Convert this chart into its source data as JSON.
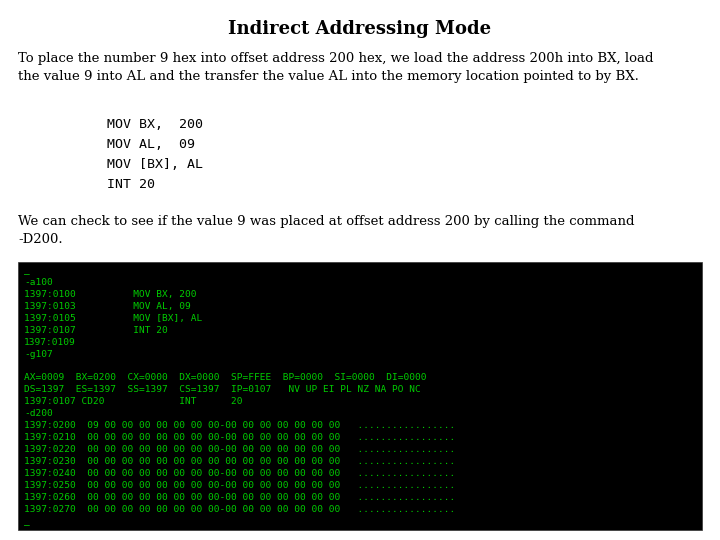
{
  "title": "Indirect Addressing Mode",
  "title_fontsize": 13,
  "body_text_1": "To place the number 9 hex into offset address 200 hex, we load the address 200h into BX, load\nthe value 9 into AL and the transfer the value AL into the memory location pointed to by BX.",
  "code_block": "    MOV BX,  200\n    MOV AL,  09\n    MOV [BX], AL\n    INT 20",
  "body_text_2": "We can check to see if the value 9 was placed at offset address 200 by calling the command\n-D200.",
  "terminal_lines": [
    "_",
    "-a100",
    "1397:0100          MOV BX, 200",
    "1397:0103          MOV AL, 09",
    "1397:0105          MOV [BX], AL",
    "1397:0107          INT 20",
    "1397:0109",
    "-g107",
    "",
    "AX=0009  BX=0200  CX=0000  DX=0000  SP=FFEE  BP=0000  SI=0000  DI=0000",
    "DS=1397  ES=1397  SS=1397  CS=1397  IP=0107   NV UP EI PL NZ NA PO NC",
    "1397:0107 CD20             INT      20",
    "-d200",
    "1397:0200  09 00 00 00 00 00 00 00-00 00 00 00 00 00 00   .................",
    "1397:0210  00 00 00 00 00 00 00 00-00 00 00 00 00 00 00   .................",
    "1397:0220  00 00 00 00 00 00 00 00-00 00 00 00 00 00 00   .................",
    "1397:0230  00 00 00 00 00 00 00 00 00 00 00 00 00 00 00   .................",
    "1397:0240  00 00 00 00 00 00 00 00-00 00 00 00 00 00 00   .................",
    "1397:0250  00 00 00 00 00 00 00 00-00 00 00 00 00 00 00   .................",
    "1397:0260  00 00 00 00 00 00 00 00-00 00 00 00 00 00 00   .................",
    "1397:0270  00 00 00 00 00 00 00 00-00 00 00 00 00 00 00   .................",
    "_"
  ],
  "bg_color": "#ffffff",
  "terminal_bg": "#000000",
  "terminal_fg": "#00cc00",
  "text_color": "#000000",
  "body_fontsize": 9.5,
  "code_fontsize": 9.5,
  "terminal_fontsize": 6.8
}
